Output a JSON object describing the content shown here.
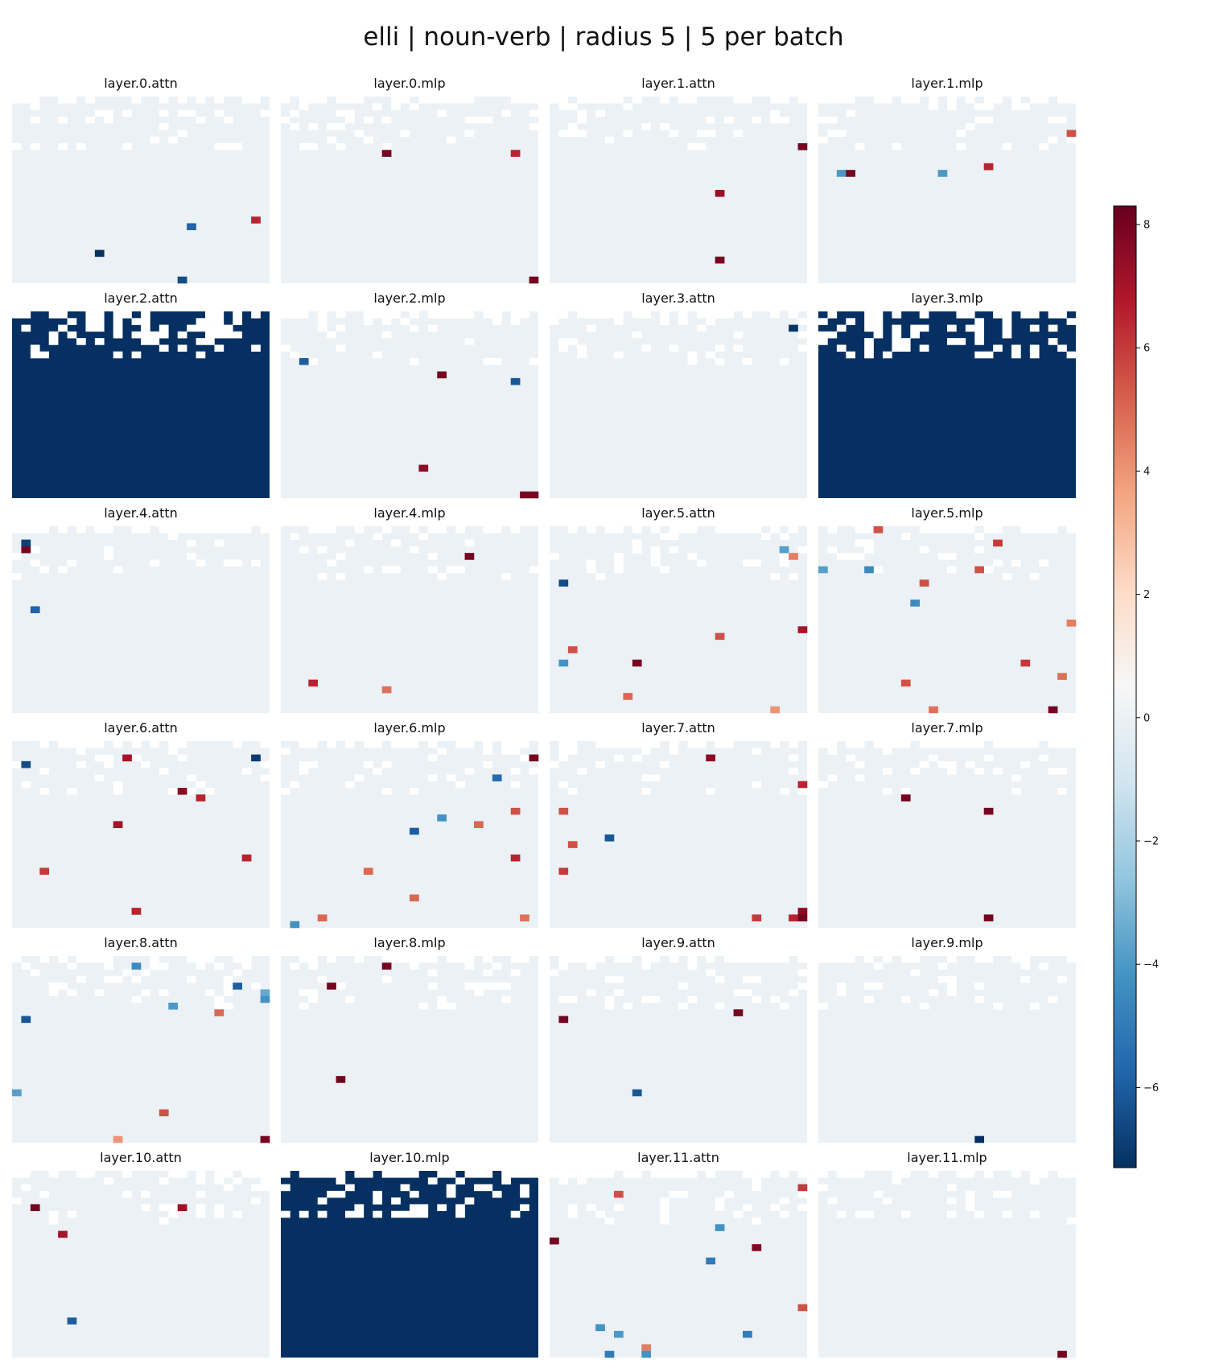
{
  "chart_data": {
    "type": "heatmap",
    "title": "elli | noun-verb | radius 5 | 5 per batch",
    "grid": {
      "rows": 28,
      "cols": 28
    },
    "colorbar": {
      "colormap": "RdBu_r",
      "vmin": -7.3,
      "vmax": 8.3,
      "ticks": [
        8,
        6,
        4,
        2,
        0,
        -2,
        -4,
        -6
      ],
      "tick_labels": [
        "8",
        "6",
        "4",
        "2",
        "0",
        "−2",
        "−4",
        "−6"
      ]
    },
    "panels": [
      {
        "label": "layer.0.attn",
        "cells": [
          [
            18,
            26,
            6.5
          ],
          [
            19,
            19,
            -5.8
          ],
          [
            23,
            9,
            -7.3
          ],
          [
            27,
            18,
            -6.5
          ]
        ]
      },
      {
        "label": "layer.0.mlp",
        "cells": [
          [
            8,
            11,
            8
          ],
          [
            8,
            25,
            6.5
          ],
          [
            27,
            27,
            8
          ]
        ]
      },
      {
        "label": "layer.1.attn",
        "cells": [
          [
            7,
            27,
            8
          ],
          [
            14,
            18,
            7.2
          ],
          [
            24,
            18,
            8
          ]
        ]
      },
      {
        "label": "layer.1.mlp",
        "cells": [
          [
            5,
            27,
            5.5
          ],
          [
            10,
            18,
            6.5
          ],
          [
            11,
            2,
            -4
          ],
          [
            11,
            3,
            8
          ],
          [
            11,
            13,
            -4
          ]
        ]
      },
      {
        "label": "layer.2.attn",
        "fill": -7.3
      },
      {
        "label": "layer.2.mlp",
        "cells": [
          [
            7,
            2,
            -6
          ],
          [
            9,
            17,
            8
          ],
          [
            10,
            25,
            -6.2
          ],
          [
            23,
            15,
            7.5
          ],
          [
            27,
            26,
            8
          ],
          [
            27,
            27,
            8
          ]
        ]
      },
      {
        "label": "layer.3.attn",
        "cells": [
          [
            2,
            26,
            -7.2
          ]
        ]
      },
      {
        "label": "layer.3.mlp",
        "fill": -7.3
      },
      {
        "label": "layer.4.attn",
        "cells": [
          [
            2,
            1,
            -6.8
          ],
          [
            3,
            1,
            8
          ],
          [
            12,
            2,
            -5.8
          ]
        ]
      },
      {
        "label": "layer.4.mlp",
        "cells": [
          [
            4,
            20,
            8
          ],
          [
            23,
            3,
            6.5
          ],
          [
            24,
            11,
            4.8
          ]
        ]
      },
      {
        "label": "layer.5.attn",
        "cells": [
          [
            3,
            25,
            -3.8
          ],
          [
            4,
            26,
            4.5
          ],
          [
            8,
            1,
            -6.5
          ],
          [
            15,
            27,
            7
          ],
          [
            16,
            18,
            5.5
          ],
          [
            18,
            2,
            5.5
          ],
          [
            20,
            1,
            -4.2
          ],
          [
            20,
            9,
            8
          ],
          [
            25,
            8,
            5
          ],
          [
            27,
            24,
            4
          ]
        ]
      },
      {
        "label": "layer.5.mlp",
        "cells": [
          [
            0,
            6,
            5.5
          ],
          [
            2,
            19,
            6
          ],
          [
            6,
            17,
            5.5
          ],
          [
            6,
            0,
            -3.8
          ],
          [
            6,
            5,
            -4.5
          ],
          [
            8,
            11,
            5.5
          ],
          [
            11,
            10,
            -4.5
          ],
          [
            14,
            27,
            4.5
          ],
          [
            20,
            22,
            6
          ],
          [
            22,
            26,
            4.8
          ],
          [
            23,
            9,
            5.5
          ],
          [
            27,
            12,
            4.8
          ],
          [
            27,
            25,
            8
          ]
        ]
      },
      {
        "label": "layer.6.attn",
        "cells": [
          [
            2,
            12,
            7
          ],
          [
            2,
            26,
            -7
          ],
          [
            3,
            1,
            -6.5
          ],
          [
            7,
            18,
            7.5
          ],
          [
            8,
            20,
            6.5
          ],
          [
            12,
            11,
            7
          ],
          [
            17,
            25,
            6.5
          ],
          [
            19,
            3,
            6
          ],
          [
            25,
            13,
            6.5
          ]
        ]
      },
      {
        "label": "layer.6.mlp",
        "cells": [
          [
            2,
            27,
            8
          ],
          [
            5,
            23,
            -5.5
          ],
          [
            10,
            25,
            5.5
          ],
          [
            11,
            17,
            -4.2
          ],
          [
            12,
            21,
            5
          ],
          [
            13,
            14,
            -6
          ],
          [
            17,
            25,
            6.5
          ],
          [
            19,
            9,
            5
          ],
          [
            23,
            14,
            5
          ],
          [
            27,
            1,
            -4.2
          ],
          [
            26,
            4,
            5
          ],
          [
            26,
            26,
            4.8
          ]
        ]
      },
      {
        "label": "layer.7.attn",
        "cells": [
          [
            2,
            17,
            7.5
          ],
          [
            6,
            27,
            6.5
          ],
          [
            10,
            1,
            5.5
          ],
          [
            14,
            6,
            -6.2
          ],
          [
            15,
            2,
            5.5
          ],
          [
            19,
            1,
            6
          ],
          [
            25,
            27,
            7.5
          ],
          [
            26,
            26,
            6.5
          ],
          [
            26,
            27,
            8
          ],
          [
            26,
            22,
            6
          ]
        ]
      },
      {
        "label": "layer.7.mlp",
        "cells": [
          [
            8,
            9,
            8
          ],
          [
            10,
            18,
            8
          ],
          [
            26,
            18,
            8
          ]
        ]
      },
      {
        "label": "layer.8.attn",
        "cells": [
          [
            1,
            13,
            -4.5
          ],
          [
            4,
            24,
            -6
          ],
          [
            5,
            27,
            -3.5
          ],
          [
            6,
            27,
            -4.2
          ],
          [
            7,
            17,
            -4
          ],
          [
            8,
            22,
            5
          ],
          [
            9,
            1,
            -6.2
          ],
          [
            20,
            0,
            -3.8
          ],
          [
            23,
            16,
            5.5
          ],
          [
            27,
            11,
            4
          ],
          [
            27,
            27,
            8
          ]
        ]
      },
      {
        "label": "layer.8.mlp",
        "cells": [
          [
            1,
            11,
            8
          ],
          [
            4,
            5,
            8
          ],
          [
            18,
            6,
            8
          ]
        ]
      },
      {
        "label": "layer.9.attn",
        "cells": [
          [
            8,
            20,
            8
          ],
          [
            9,
            1,
            8
          ],
          [
            20,
            9,
            -6.2
          ]
        ]
      },
      {
        "label": "layer.9.mlp",
        "cells": [
          [
            27,
            17,
            -7.3
          ]
        ]
      },
      {
        "label": "layer.10.attn",
        "cells": [
          [
            5,
            2,
            8
          ],
          [
            5,
            18,
            7.2
          ],
          [
            9,
            5,
            7
          ],
          [
            22,
            6,
            -6
          ]
        ]
      },
      {
        "label": "layer.10.mlp",
        "fill": -7.3
      },
      {
        "label": "layer.11.attn",
        "cells": [
          [
            2,
            27,
            6
          ],
          [
            3,
            7,
            5.5
          ],
          [
            8,
            18,
            -4.2
          ],
          [
            10,
            0,
            8
          ],
          [
            11,
            22,
            7.8
          ],
          [
            13,
            17,
            -5
          ],
          [
            20,
            27,
            5.5
          ],
          [
            23,
            5,
            -4.2
          ],
          [
            24,
            7,
            -4
          ],
          [
            24,
            21,
            -5
          ],
          [
            26,
            10,
            4.5
          ],
          [
            27,
            6,
            -5
          ],
          [
            27,
            10,
            -4.2
          ]
        ]
      },
      {
        "label": "layer.11.mlp",
        "cells": [
          [
            27,
            26,
            8
          ]
        ]
      }
    ]
  }
}
